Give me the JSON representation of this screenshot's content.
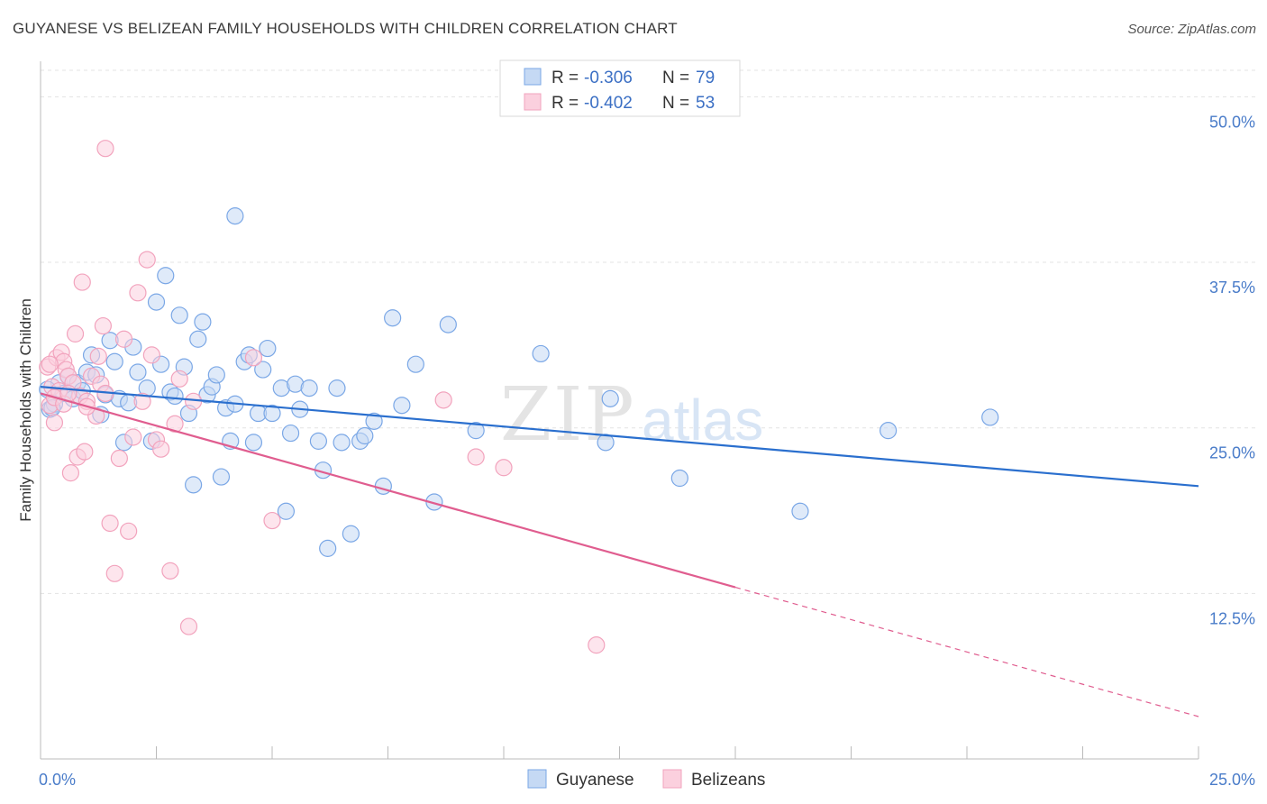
{
  "title": "GUYANESE VS BELIZEAN FAMILY HOUSEHOLDS WITH CHILDREN CORRELATION CHART",
  "source": "Source: ZipAtlas.com",
  "watermark": {
    "zip": "ZIP",
    "atlas": "atlas"
  },
  "chart_data": {
    "type": "scatter",
    "ylabel": "Family Households with Children",
    "xlim": [
      0,
      25
    ],
    "ylim": [
      0,
      52
    ],
    "x_tick_labels": [
      "0.0%",
      "25.0%"
    ],
    "y_ticks": [
      12.5,
      25.0,
      37.5,
      50.0
    ],
    "y_tick_labels": [
      "12.5%",
      "25.0%",
      "37.5%",
      "50.0%"
    ],
    "grid": "horizontal dashed",
    "legend": {
      "position": "top-center",
      "rows": [
        {
          "r_label": "R = ",
          "r_value": "-0.306",
          "n_label": "N = ",
          "n_value": "79"
        },
        {
          "r_label": "R = ",
          "r_value": "-0.402",
          "n_label": "N = ",
          "n_value": "53"
        }
      ]
    },
    "series": [
      {
        "name": "Guyanese",
        "color": "#7aa7e6",
        "line_color": "#2a6fce",
        "trend": {
          "x": [
            0,
            25
          ],
          "y": [
            28.1,
            20.6
          ],
          "dashed_from": null
        },
        "points": [
          [
            0.2,
            26.4
          ],
          [
            0.3,
            26.8
          ],
          [
            0.4,
            28.4
          ],
          [
            0.5,
            27.6
          ],
          [
            0.6,
            28.9
          ],
          [
            0.7,
            27.2
          ],
          [
            0.8,
            28.4
          ],
          [
            0.9,
            27.8
          ],
          [
            1.0,
            29.2
          ],
          [
            1.1,
            30.5
          ],
          [
            1.2,
            29.0
          ],
          [
            1.3,
            26.0
          ],
          [
            1.4,
            27.5
          ],
          [
            1.5,
            31.6
          ],
          [
            1.6,
            30.0
          ],
          [
            1.7,
            27.2
          ],
          [
            1.8,
            23.9
          ],
          [
            1.9,
            26.9
          ],
          [
            2.0,
            31.1
          ],
          [
            2.1,
            29.2
          ],
          [
            2.3,
            28.0
          ],
          [
            2.4,
            24.0
          ],
          [
            2.5,
            34.5
          ],
          [
            2.6,
            29.8
          ],
          [
            2.7,
            36.5
          ],
          [
            2.8,
            27.7
          ],
          [
            2.9,
            27.4
          ],
          [
            3.0,
            33.5
          ],
          [
            3.1,
            29.6
          ],
          [
            3.2,
            26.1
          ],
          [
            3.3,
            20.7
          ],
          [
            3.4,
            31.7
          ],
          [
            3.5,
            33.0
          ],
          [
            3.6,
            27.5
          ],
          [
            3.7,
            28.1
          ],
          [
            3.8,
            29.0
          ],
          [
            3.9,
            21.3
          ],
          [
            4.0,
            26.5
          ],
          [
            4.1,
            24.0
          ],
          [
            4.2,
            26.8
          ],
          [
            4.4,
            30.0
          ],
          [
            4.5,
            30.5
          ],
          [
            4.6,
            23.9
          ],
          [
            4.7,
            26.1
          ],
          [
            4.8,
            29.4
          ],
          [
            4.9,
            31.0
          ],
          [
            5.0,
            26.1
          ],
          [
            5.2,
            28.0
          ],
          [
            5.3,
            18.7
          ],
          [
            5.4,
            24.6
          ],
          [
            5.5,
            28.3
          ],
          [
            5.6,
            26.4
          ],
          [
            5.8,
            28.0
          ],
          [
            6.0,
            24.0
          ],
          [
            6.1,
            21.8
          ],
          [
            6.2,
            15.9
          ],
          [
            6.4,
            28.0
          ],
          [
            6.5,
            23.9
          ],
          [
            6.7,
            17.0
          ],
          [
            6.9,
            24.0
          ],
          [
            7.0,
            24.4
          ],
          [
            7.2,
            25.5
          ],
          [
            7.4,
            20.6
          ],
          [
            7.6,
            33.3
          ],
          [
            7.8,
            26.7
          ],
          [
            8.1,
            29.8
          ],
          [
            8.5,
            19.4
          ],
          [
            8.8,
            32.8
          ],
          [
            9.4,
            24.8
          ],
          [
            10.8,
            30.6
          ],
          [
            12.2,
            23.9
          ],
          [
            12.3,
            27.2
          ],
          [
            13.8,
            21.2
          ],
          [
            16.4,
            18.7
          ],
          [
            18.3,
            24.8
          ],
          [
            20.5,
            25.8
          ],
          [
            4.2,
            41.0
          ],
          [
            0.15,
            27.9
          ],
          [
            0.25,
            26.5
          ]
        ]
      },
      {
        "name": "Belizeans",
        "color": "#f2a3bd",
        "line_color": "#e05d8f",
        "trend": {
          "x": [
            0,
            25
          ],
          "y": [
            27.6,
            3.2
          ],
          "dashed_from": 15.0
        },
        "points": [
          [
            0.15,
            29.6
          ],
          [
            0.2,
            26.7
          ],
          [
            0.25,
            28.1
          ],
          [
            0.3,
            25.4
          ],
          [
            0.35,
            30.3
          ],
          [
            0.4,
            27.8
          ],
          [
            0.45,
            30.7
          ],
          [
            0.5,
            30.0
          ],
          [
            0.55,
            29.4
          ],
          [
            0.6,
            28.9
          ],
          [
            0.65,
            21.6
          ],
          [
            0.7,
            28.4
          ],
          [
            0.75,
            32.1
          ],
          [
            0.8,
            22.8
          ],
          [
            0.85,
            27.4
          ],
          [
            0.9,
            36.0
          ],
          [
            0.95,
            23.2
          ],
          [
            1.0,
            27.0
          ],
          [
            1.1,
            28.9
          ],
          [
            1.2,
            25.9
          ],
          [
            1.25,
            30.4
          ],
          [
            1.3,
            28.3
          ],
          [
            1.35,
            32.7
          ],
          [
            1.4,
            27.6
          ],
          [
            1.5,
            17.8
          ],
          [
            1.6,
            14.0
          ],
          [
            1.7,
            22.7
          ],
          [
            1.8,
            31.7
          ],
          [
            1.9,
            17.2
          ],
          [
            2.0,
            24.3
          ],
          [
            2.1,
            35.2
          ],
          [
            2.2,
            27.0
          ],
          [
            2.3,
            37.7
          ],
          [
            2.4,
            30.5
          ],
          [
            2.5,
            24.1
          ],
          [
            2.6,
            23.4
          ],
          [
            2.8,
            14.2
          ],
          [
            2.9,
            25.3
          ],
          [
            3.0,
            28.7
          ],
          [
            3.2,
            10.0
          ],
          [
            3.3,
            27.0
          ],
          [
            4.6,
            30.3
          ],
          [
            5.0,
            18.0
          ],
          [
            8.7,
            27.1
          ],
          [
            9.4,
            22.8
          ],
          [
            10.0,
            22.0
          ],
          [
            12.0,
            8.6
          ],
          [
            1.4,
            46.1
          ],
          [
            0.2,
            29.8
          ],
          [
            0.3,
            27.3
          ],
          [
            0.5,
            26.8
          ],
          [
            0.6,
            27.6
          ],
          [
            1.0,
            26.6
          ]
        ]
      }
    ]
  }
}
